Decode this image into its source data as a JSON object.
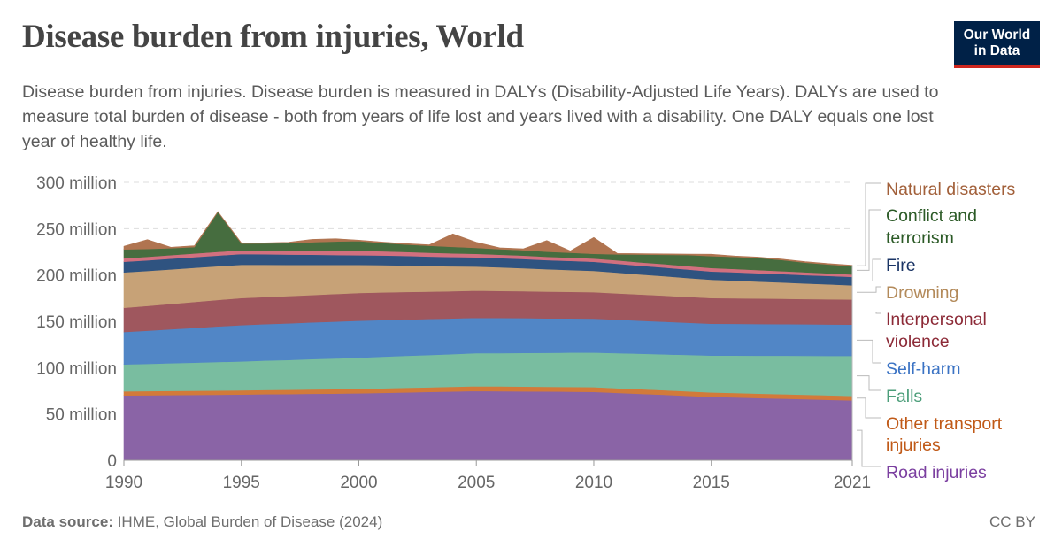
{
  "header": {
    "title": "Disease burden from injuries, World",
    "subtitle": "Disease burden from injuries. Disease burden is measured in DALYs (Disability-Adjusted Life Years). DALYs are used to measure total burden of disease - both from years of life lost and years lived with a disability. One DALY equals one lost year of healthy life.",
    "logo_line1": "Our World",
    "logo_line2": "in Data"
  },
  "footer": {
    "source_label": "Data source:",
    "source_text": " IHME, Global Burden of Disease (2024)",
    "license": "CC BY"
  },
  "chart_data": {
    "type": "area",
    "stacked": true,
    "title": "Disease burden from injuries, World",
    "ylim": [
      0,
      300
    ],
    "y_unit": "million",
    "y_ticks": [
      0,
      50,
      100,
      150,
      200,
      250,
      300
    ],
    "y_tick_labels": [
      "0",
      "50 million",
      "100 million",
      "150 million",
      "200 million",
      "250 million",
      "300 million"
    ],
    "x_ticks": [
      1990,
      1995,
      2000,
      2005,
      2010,
      2015,
      2021
    ],
    "x_tick_labels": [
      "1990",
      "1995",
      "2000",
      "2005",
      "2010",
      "2015",
      "2021"
    ],
    "grid": "horizontal dashed",
    "legend": "right",
    "x": [
      1990,
      1991,
      1992,
      1993,
      1994,
      1995,
      1996,
      1997,
      1998,
      1999,
      2000,
      2001,
      2002,
      2003,
      2004,
      2005,
      2006,
      2007,
      2008,
      2009,
      2010,
      2011,
      2012,
      2013,
      2014,
      2015,
      2016,
      2017,
      2018,
      2019,
      2020,
      2021
    ],
    "series": [
      {
        "name": "Road injuries",
        "color": "#8a64a6",
        "label_color": "#7b3fa0",
        "values": [
          70,
          70.2,
          70.4,
          70.6,
          70.8,
          71,
          71.3,
          71.5,
          71.8,
          72,
          72.3,
          72.8,
          73.3,
          73.8,
          74.3,
          74.8,
          74.6,
          74.4,
          74.3,
          74.1,
          73.9,
          72.8,
          71.7,
          70.7,
          69.6,
          68.5,
          67.9,
          67.2,
          66.6,
          66,
          65.3,
          64.7
        ]
      },
      {
        "name": "Other transport injuries",
        "color": "#d27a3a",
        "label_color": "#c05917",
        "values": [
          4.5,
          4.5,
          4.5,
          4.5,
          4.5,
          4.5,
          4.6,
          4.6,
          4.7,
          4.7,
          4.8,
          4.9,
          5,
          5,
          5.1,
          5.2,
          5.2,
          5.2,
          5.1,
          5.1,
          5.1,
          5,
          5,
          4.9,
          4.9,
          4.8,
          4.8,
          4.8,
          4.8,
          4.8,
          4.8,
          4.8
        ]
      },
      {
        "name": "Falls",
        "color": "#79bda0",
        "label_color": "#4c9e7a",
        "values": [
          29,
          29.4,
          29.9,
          30.3,
          30.8,
          31.2,
          31.7,
          32.2,
          32.7,
          33.2,
          33.7,
          34.1,
          34.5,
          34.8,
          35.2,
          35.6,
          35.9,
          36.3,
          36.6,
          37,
          37.3,
          37.8,
          38.3,
          38.7,
          39.2,
          39.7,
          40.3,
          40.9,
          41.5,
          42,
          42.6,
          43.2
        ]
      },
      {
        "name": "Self-harm",
        "color": "#5186c6",
        "label_color": "#3b73c4",
        "values": [
          35,
          35.8,
          36.7,
          37.5,
          38.4,
          39.2,
          39.3,
          39.5,
          39.6,
          39.8,
          39.9,
          39.6,
          39.2,
          38.9,
          38.5,
          38.2,
          37.9,
          37.6,
          37.2,
          36.9,
          36.6,
          36.2,
          35.7,
          35.3,
          34.8,
          34.4,
          34.3,
          34.2,
          34.1,
          34,
          33.9,
          33.8
        ]
      },
      {
        "name": "Interpersonal violence",
        "color": "#9f575e",
        "label_color": "#8c2a37",
        "values": [
          26.1,
          26.7,
          27.3,
          28,
          28.6,
          29.2,
          29.3,
          29.5,
          29.6,
          29.8,
          29.9,
          29.8,
          29.7,
          29.5,
          29.4,
          29.3,
          29.2,
          29,
          28.9,
          28.7,
          28.6,
          28.4,
          28.2,
          28.1,
          27.9,
          27.7,
          27.6,
          27.5,
          27.4,
          27.3,
          27.2,
          27.1
        ]
      },
      {
        "name": "Drowning",
        "color": "#c7a277",
        "label_color": "#b38a5a",
        "values": [
          38.2,
          37.8,
          37.3,
          36.9,
          36.4,
          36,
          34.9,
          33.7,
          32.6,
          31.4,
          30.3,
          29.5,
          28.6,
          27.8,
          26.9,
          26.1,
          25.5,
          24.9,
          24.2,
          23.6,
          23,
          22.4,
          21.7,
          21.1,
          20.4,
          19.8,
          19.1,
          18.3,
          17.6,
          16.8,
          16.1,
          15.3
        ]
      },
      {
        "name": "Fire",
        "color": "#2f5380",
        "label_color": "#1a3465",
        "values": [
          11.5,
          11.5,
          11.5,
          11.5,
          11.5,
          11.5,
          11.3,
          11.1,
          10.9,
          10.7,
          10.5,
          10.4,
          10.3,
          10.1,
          10,
          9.9,
          9.9,
          9.9,
          9.8,
          9.8,
          9.8,
          9.6,
          9.4,
          9.3,
          9.1,
          8.9,
          8.9,
          9,
          9,
          9,
          9.1,
          9.1
        ]
      },
      {
        "name": "",
        "color": "#d2707f",
        "label_color": "#d2707f",
        "values": [
          3.7,
          3.8,
          3.9,
          3.9,
          4,
          4.1,
          4.2,
          4.3,
          4.5,
          4.6,
          4.7,
          4.5,
          4.3,
          4.2,
          4,
          3.8,
          3.7,
          3.7,
          3.6,
          3.6,
          3.5,
          3.6,
          3.6,
          3.7,
          3.7,
          3.8,
          3.6,
          3.4,
          3.2,
          3,
          2.8,
          2.6
        ]
      },
      {
        "name": "Conflict and terrorism",
        "color": "#466d3f",
        "label_color": "#2b5a26",
        "values": [
          9.7,
          8.5,
          7.5,
          7,
          43,
          7.3,
          7.5,
          8,
          9,
          10,
          10.5,
          9,
          8,
          7.5,
          7,
          6.4,
          6,
          5.8,
          5.5,
          5.3,
          5.1,
          6.5,
          8.5,
          10,
          12,
          12.8,
          13,
          13,
          12,
          10.5,
          9.5,
          8.9
        ]
      },
      {
        "name": "Natural disasters",
        "color": "#b07450",
        "label_color": "#a2603a",
        "values": [
          3.3,
          10,
          1,
          1.5,
          0.5,
          0.7,
          0.7,
          1,
          3,
          3,
          1,
          1,
          1,
          1,
          14,
          6,
          1.5,
          1.5,
          12,
          2,
          17.6,
          1,
          1,
          1,
          1,
          2,
          1,
          1,
          1,
          1,
          1,
          1
        ]
      }
    ]
  }
}
